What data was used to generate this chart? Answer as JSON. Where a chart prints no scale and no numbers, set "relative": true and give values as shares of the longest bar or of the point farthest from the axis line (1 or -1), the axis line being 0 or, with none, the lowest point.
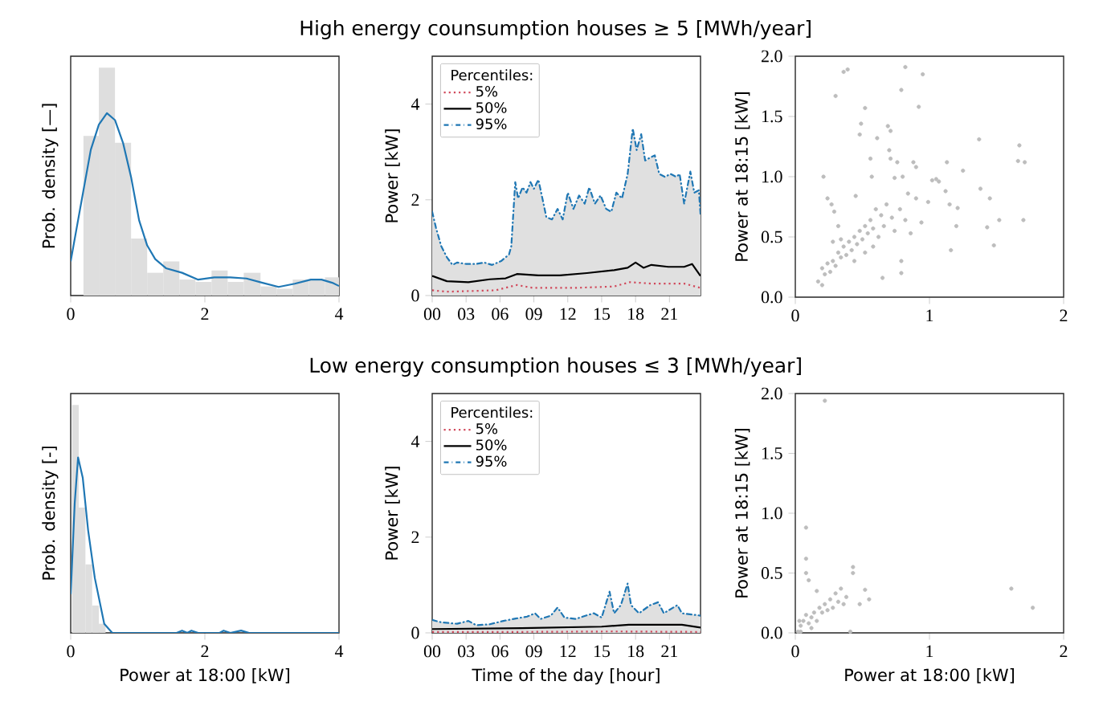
{
  "chart_data": [
    {
      "type": "histogram",
      "relative": true,
      "ylabel": "Prob. density [—]",
      "xlim": [
        0,
        4
      ],
      "xticks": [
        0,
        2,
        4
      ],
      "tick_labels": "x",
      "color": "#dedede",
      "bins": [
        0.19,
        0.42,
        0.66,
        0.9,
        1.14,
        1.38,
        1.62,
        1.86,
        2.1,
        2.34,
        2.58,
        2.83,
        3.07,
        3.31,
        3.55,
        3.79,
        4.0
      ],
      "values": [
        0.7,
        1,
        0.67,
        0.25,
        0.1,
        0.15,
        0.07,
        0.06,
        0.11,
        0.06,
        0.1,
        0.04,
        0.03,
        0.07,
        0.07,
        0.08
      ],
      "series": [
        {
          "type": "line",
          "color": "#1f77b4",
          "x": [
            0,
            0.14,
            0.3,
            0.42,
            0.54,
            0.66,
            0.78,
            0.9,
            1.02,
            1.14,
            1.26,
            1.42,
            1.66,
            1.9,
            2.14,
            2.38,
            2.62,
            2.86,
            3.1,
            3.34,
            3.58,
            3.74,
            3.9,
            4
          ],
          "values": [
            0.15,
            0.38,
            0.64,
            0.75,
            0.8,
            0.77,
            0.67,
            0.52,
            0.33,
            0.22,
            0.16,
            0.12,
            0.1,
            0.07,
            0.08,
            0.08,
            0.075,
            0.056,
            0.038,
            0.052,
            0.07,
            0.07,
            0.056,
            0.042
          ]
        }
      ]
    },
    {
      "type": "line",
      "title": "High energy counsumption houses ≥ 5 [MWh/year]",
      "ylabel": "Power [kW]",
      "xlim": [
        0,
        23.75
      ],
      "ylim": [
        0,
        5
      ],
      "yticks": [
        0,
        2,
        4
      ],
      "xticks": [
        {
          "value": 0,
          "label": "00"
        },
        {
          "value": 3,
          "label": "03"
        },
        {
          "value": 6,
          "label": "06"
        },
        {
          "value": 9,
          "label": "09"
        },
        {
          "value": 12,
          "label": "12"
        },
        {
          "value": 15,
          "label": "15"
        },
        {
          "value": 18,
          "label": "18"
        },
        {
          "value": 21,
          "label": "21"
        }
      ],
      "legend": "top left",
      "legend_title": "Percentiles:",
      "series": [
        {
          "name": "5%",
          "type": "line",
          "line_style": "dotted",
          "color": "#d1495b",
          "x": [
            0,
            1.3,
            5.6,
            7.5,
            8.9,
            12.7,
            16.1,
            17.5,
            19.4,
            22.3,
            23.75
          ],
          "values": [
            0.11,
            0.08,
            0.11,
            0.22,
            0.16,
            0.16,
            0.19,
            0.28,
            0.25,
            0.25,
            0.16
          ]
        },
        {
          "name": "50%",
          "type": "line",
          "line_style": "solid",
          "color": "#000000",
          "x": [
            0,
            1.3,
            3.2,
            5.1,
            6.5,
            7.5,
            9.4,
            11.3,
            13.7,
            16.1,
            17.3,
            18,
            18.7,
            19.4,
            20.9,
            22.3,
            23,
            23.75
          ],
          "values": [
            0.41,
            0.3,
            0.28,
            0.34,
            0.36,
            0.45,
            0.42,
            0.42,
            0.47,
            0.53,
            0.58,
            0.69,
            0.58,
            0.64,
            0.6,
            0.6,
            0.66,
            0.41
          ]
        },
        {
          "name": "95%",
          "type": "area",
          "line_style": "dashdot",
          "color": "#1f77b4",
          "x": [
            0,
            0.33,
            0.8,
            1.3,
            1.8,
            2.2,
            3,
            3.9,
            4.6,
            5.3,
            6.1,
            6.8,
            7,
            7.35,
            7.6,
            8,
            8.35,
            8.7,
            9,
            9.4,
            9.8,
            10.1,
            10.6,
            11.1,
            11.55,
            12,
            12.5,
            13,
            13.5,
            13.9,
            14.4,
            14.9,
            15.4,
            15.85,
            16.3,
            16.8,
            17.3,
            17.75,
            18.1,
            18.5,
            18.85,
            19.2,
            19.7,
            20.1,
            20.6,
            21.1,
            21.6,
            21.9,
            22.3,
            22.85,
            23.2,
            23.6,
            23.75
          ],
          "values": [
            1.75,
            1.42,
            1.03,
            0.8,
            0.64,
            0.69,
            0.66,
            0.66,
            0.69,
            0.64,
            0.72,
            0.86,
            1.03,
            2.37,
            2.03,
            2.26,
            2.15,
            2.37,
            2.23,
            2.42,
            1.98,
            1.64,
            1.59,
            1.81,
            1.59,
            2.15,
            1.81,
            2.09,
            1.92,
            2.26,
            1.92,
            2.09,
            1.81,
            1.75,
            2.15,
            2.03,
            2.54,
            3.49,
            3.04,
            3.37,
            2.82,
            2.87,
            2.93,
            2.54,
            2.48,
            2.54,
            2.48,
            2.54,
            1.92,
            2.59,
            2.15,
            2.2,
            1.7
          ]
        }
      ]
    },
    {
      "type": "scatter",
      "ylabel": "Power at 18:15 [kW]",
      "xlim": [
        0,
        2
      ],
      "xticks": [
        0,
        1,
        2
      ],
      "ylim": [
        0,
        2
      ],
      "yticks": [
        {
          "value": 0,
          "label": "0.0"
        },
        {
          "value": 0.5,
          "label": "0.5"
        },
        {
          "value": 1,
          "label": "1.0"
        },
        {
          "value": 1.5,
          "label": "1.5"
        },
        {
          "value": 2,
          "label": "2.0"
        }
      ],
      "marker": "circle",
      "color": "#bdbdbd",
      "x": [
        0.17,
        0.2,
        0.21,
        0.24,
        0.27,
        0.29,
        0.3,
        0.36,
        0.39,
        0.32,
        0.45,
        0.48,
        0.49,
        0.52,
        0.56,
        0.57,
        0.61,
        0.65,
        0.69,
        0.71,
        0.7,
        0.71,
        0.74,
        0.76,
        0.79,
        0.82,
        0.79,
        0.79,
        0.8,
        0.88,
        0.9,
        0.92,
        0.95,
        0.9,
        0.94,
        0.99,
        1.02,
        1.05,
        1.07,
        1.12,
        1.13,
        1.15,
        1.16,
        1.2,
        1.21,
        1.25,
        1.37,
        1.38,
        1.43,
        1.45,
        1.48,
        1.52,
        1.67,
        1.66,
        1.71,
        1.7,
        0.2,
        0.22,
        0.24,
        0.26,
        0.28,
        0.3,
        0.32,
        0.34,
        0.36,
        0.38,
        0.4,
        0.42,
        0.44,
        0.46,
        0.48,
        0.5,
        0.52,
        0.54,
        0.56,
        0.58,
        0.6,
        0.62,
        0.64,
        0.66,
        0.68,
        0.72,
        0.74,
        0.78,
        0.82,
        0.84,
        0.86,
        0.52,
        0.44,
        0.58,
        0.34,
        0.28
      ],
      "values": [
        0.13,
        0.1,
        1.0,
        0.82,
        0.77,
        0.71,
        1.67,
        1.87,
        1.89,
        0.59,
        0.84,
        1.35,
        1.44,
        1.57,
        1.15,
        1.0,
        1.32,
        0.16,
        1.42,
        1.38,
        1.22,
        1.15,
        0.99,
        1.12,
        1.72,
        1.91,
        0.3,
        0.2,
        1.0,
        1.12,
        1.08,
        1.58,
        1.85,
        0.82,
        0.62,
        0.79,
        0.97,
        0.98,
        0.96,
        0.88,
        1.12,
        0.77,
        0.39,
        0.59,
        0.74,
        1.05,
        1.31,
        0.9,
        0.58,
        0.82,
        0.43,
        0.64,
        1.26,
        1.13,
        1.12,
        0.64,
        0.24,
        0.19,
        0.28,
        0.21,
        0.3,
        0.26,
        0.37,
        0.33,
        0.42,
        0.35,
        0.46,
        0.39,
        0.5,
        0.44,
        0.55,
        0.48,
        0.59,
        0.53,
        0.64,
        0.57,
        0.73,
        0.5,
        0.68,
        0.59,
        0.77,
        0.66,
        0.55,
        0.73,
        0.64,
        0.86,
        0.53,
        0.37,
        0.3,
        0.42,
        0.48,
        0.46
      ]
    },
    {
      "type": "histogram",
      "relative": true,
      "ylabel": "Prob. density [-]",
      "xlabel": "Power at 18:00 [kW]",
      "xlim": [
        0,
        4
      ],
      "xticks": [
        0,
        2,
        4
      ],
      "tick_labels": "x",
      "color": "#dedede",
      "bins": [
        0.02,
        0.12,
        0.22,
        0.32,
        0.42,
        0.52
      ],
      "values": [
        1,
        0.55,
        0.3,
        0.12,
        0.04
      ],
      "series": [
        {
          "type": "line",
          "color": "#1f77b4",
          "x": [
            0,
            0.06,
            0.11,
            0.18,
            0.26,
            0.36,
            0.5,
            0.62,
            1.58,
            1.66,
            1.74,
            1.8,
            1.9,
            2.22,
            2.28,
            2.38,
            2.54,
            2.66,
            4
          ],
          "values": [
            0.17,
            0.57,
            0.77,
            0.68,
            0.45,
            0.24,
            0.04,
            0,
            0,
            0.01,
            0,
            0.01,
            0,
            0,
            0.01,
            0,
            0.01,
            0,
            0
          ]
        }
      ]
    },
    {
      "type": "line",
      "title": "Low energy consumption houses ≤ 3 [MWh/year]",
      "ylabel": "Power [kW]",
      "xlabel": "Time of the day [hour]",
      "xlim": [
        0,
        23.75
      ],
      "ylim": [
        0,
        5
      ],
      "yticks": [
        0,
        2,
        4
      ],
      "xticks": [
        {
          "value": 0,
          "label": "00"
        },
        {
          "value": 3,
          "label": "03"
        },
        {
          "value": 6,
          "label": "06"
        },
        {
          "value": 9,
          "label": "09"
        },
        {
          "value": 12,
          "label": "12"
        },
        {
          "value": 15,
          "label": "15"
        },
        {
          "value": 18,
          "label": "18"
        },
        {
          "value": 21,
          "label": "21"
        }
      ],
      "legend": "top left",
      "legend_title": "Percentiles:",
      "series": [
        {
          "name": "5%",
          "type": "line",
          "line_style": "dotted",
          "color": "#d1495b",
          "x": [
            0,
            8,
            16,
            23.75
          ],
          "values": [
            0.02,
            0.02,
            0.03,
            0.02
          ]
        },
        {
          "name": "50%",
          "type": "line",
          "line_style": "solid",
          "color": "#000000",
          "x": [
            0,
            7.9,
            15,
            17.4,
            22.1,
            23.75
          ],
          "values": [
            0.08,
            0.1,
            0.13,
            0.17,
            0.17,
            0.11
          ]
        },
        {
          "name": "95%",
          "type": "area",
          "line_style": "dashdot",
          "color": "#1f77b4",
          "x": [
            0,
            0.8,
            2.2,
            3.2,
            3.9,
            5.1,
            6.3,
            7.4,
            8.4,
            9.1,
            9.6,
            10.5,
            11.1,
            11.7,
            12.7,
            13.6,
            14.3,
            15,
            15.7,
            16.1,
            16.7,
            17.3,
            17.6,
            18.3,
            19.3,
            20,
            20.5,
            21.7,
            22.1,
            23.1,
            23.75
          ],
          "values": [
            0.27,
            0.22,
            0.19,
            0.25,
            0.16,
            0.18,
            0.25,
            0.3,
            0.34,
            0.41,
            0.29,
            0.36,
            0.53,
            0.32,
            0.29,
            0.36,
            0.41,
            0.32,
            0.86,
            0.41,
            0.58,
            1.03,
            0.58,
            0.41,
            0.58,
            0.64,
            0.41,
            0.58,
            0.41,
            0.38,
            0.36
          ]
        }
      ]
    },
    {
      "type": "scatter",
      "ylabel": "Power at 18:15 [kW]",
      "xlabel": "Power at 18:00 [kW]",
      "xlim": [
        0,
        2
      ],
      "xticks": [
        0,
        1,
        2
      ],
      "ylim": [
        0,
        2
      ],
      "yticks": [
        {
          "value": 0,
          "label": "0.0"
        },
        {
          "value": 0.5,
          "label": "0.5"
        },
        {
          "value": 1,
          "label": "1.0"
        },
        {
          "value": 1.5,
          "label": "1.5"
        },
        {
          "value": 2,
          "label": "2.0"
        }
      ],
      "marker": "circle",
      "color": "#bdbdbd",
      "x": [
        0.22,
        0.08,
        0.08,
        0.08,
        0.1,
        0.43,
        0.43,
        0.41,
        0.48,
        0.52,
        0.55,
        1.61,
        1.77,
        0.02,
        0.04,
        0.06,
        0.08,
        0.1,
        0.12,
        0.14,
        0.16,
        0.18,
        0.2,
        0.22,
        0.24,
        0.26,
        0.28,
        0.3,
        0.32,
        0.34,
        0.36,
        0.38,
        0.16,
        0.04,
        0.12,
        0.03
      ],
      "values": [
        1.94,
        0.88,
        0.62,
        0.5,
        0.44,
        0.55,
        0.5,
        0.01,
        0.24,
        0.36,
        0.28,
        0.37,
        0.21,
        0.01,
        0.06,
        0.1,
        0.15,
        0.08,
        0.13,
        0.17,
        0.1,
        0.21,
        0.17,
        0.24,
        0.19,
        0.28,
        0.21,
        0.33,
        0.26,
        0.37,
        0.24,
        0.3,
        0.35,
        0.01,
        0.04,
        0.1
      ]
    }
  ]
}
